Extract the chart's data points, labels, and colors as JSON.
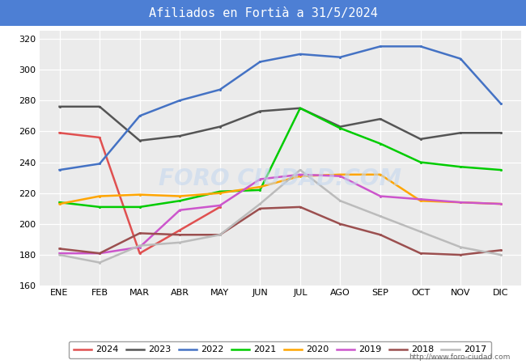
{
  "title": "Afiliados en Fortià a 31/5/2024",
  "title_bg": "#4d7fd4",
  "months": [
    "ENE",
    "FEB",
    "MAR",
    "ABR",
    "MAY",
    "JUN",
    "JUL",
    "AGO",
    "SEP",
    "OCT",
    "NOV",
    "DIC"
  ],
  "ylim": [
    160,
    325
  ],
  "yticks": [
    160,
    180,
    200,
    220,
    240,
    260,
    280,
    300,
    320
  ],
  "series": [
    {
      "year": "2024",
      "color": "#e05050",
      "data": [
        259,
        256,
        181,
        196,
        211,
        null,
        null,
        null,
        null,
        null,
        null,
        null
      ]
    },
    {
      "year": "2023",
      "color": "#555555",
      "data": [
        276,
        276,
        254,
        257,
        263,
        273,
        275,
        263,
        268,
        255,
        259,
        259
      ]
    },
    {
      "year": "2022",
      "color": "#4472c4",
      "data": [
        235,
        239,
        270,
        280,
        287,
        305,
        310,
        308,
        315,
        315,
        307,
        278
      ]
    },
    {
      "year": "2021",
      "color": "#00cc00",
      "data": [
        214,
        211,
        211,
        215,
        221,
        222,
        275,
        262,
        252,
        240,
        237,
        235
      ]
    },
    {
      "year": "2020",
      "color": "#ffa500",
      "data": [
        213,
        218,
        219,
        218,
        220,
        224,
        231,
        232,
        232,
        215,
        214,
        213
      ]
    },
    {
      "year": "2019",
      "color": "#cc55cc",
      "data": [
        181,
        181,
        185,
        209,
        212,
        229,
        232,
        231,
        218,
        216,
        214,
        213
      ]
    },
    {
      "year": "2018",
      "color": "#9b4f4f",
      "data": [
        184,
        181,
        194,
        193,
        193,
        210,
        211,
        200,
        193,
        181,
        180,
        183
      ]
    },
    {
      "year": "2017",
      "color": "#bbbbbb",
      "data": [
        180,
        175,
        186,
        188,
        193,
        213,
        235,
        215,
        205,
        195,
        185,
        180
      ]
    }
  ],
  "watermark": "FORO CIUDAD.COM",
  "url": "http://www.foro-ciudad.com",
  "title_fontsize": 11,
  "tick_fontsize": 8,
  "legend_fontsize": 8
}
